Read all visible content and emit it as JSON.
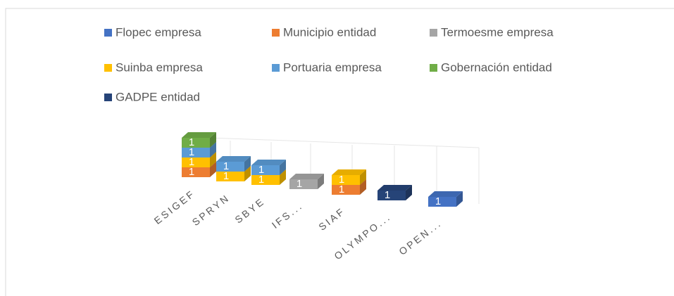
{
  "chart_data": {
    "type": "bar3d_stacked",
    "categories": [
      "ESIGEF",
      "SPRYN",
      "SBYE",
      "IFS...",
      "SIAF",
      "OLYMPO...",
      "OPEN..."
    ],
    "series": [
      {
        "name": "Flopec empresa",
        "color": "#4472c4",
        "values": [
          null,
          null,
          null,
          null,
          null,
          null,
          1
        ]
      },
      {
        "name": "Municipio entidad",
        "color": "#ed7d31",
        "values": [
          1,
          null,
          null,
          null,
          1,
          null,
          null
        ]
      },
      {
        "name": "Termoesme empresa",
        "color": "#a5a5a5",
        "values": [
          null,
          null,
          null,
          1,
          null,
          null,
          null
        ]
      },
      {
        "name": "Suinba empresa",
        "color": "#ffc000",
        "values": [
          1,
          1,
          1,
          null,
          1,
          null,
          null
        ]
      },
      {
        "name": "Portuaria empresa",
        "color": "#5b9bd5",
        "values": [
          1,
          1,
          1,
          null,
          null,
          null,
          null
        ]
      },
      {
        "name": "Gobernación entidad",
        "color": "#70ad47",
        "values": [
          1,
          null,
          null,
          null,
          null,
          null,
          null
        ]
      },
      {
        "name": "GADPE entidad",
        "color": "#264478",
        "values": [
          null,
          null,
          null,
          null,
          null,
          1,
          null
        ]
      }
    ],
    "legend": "top"
  }
}
